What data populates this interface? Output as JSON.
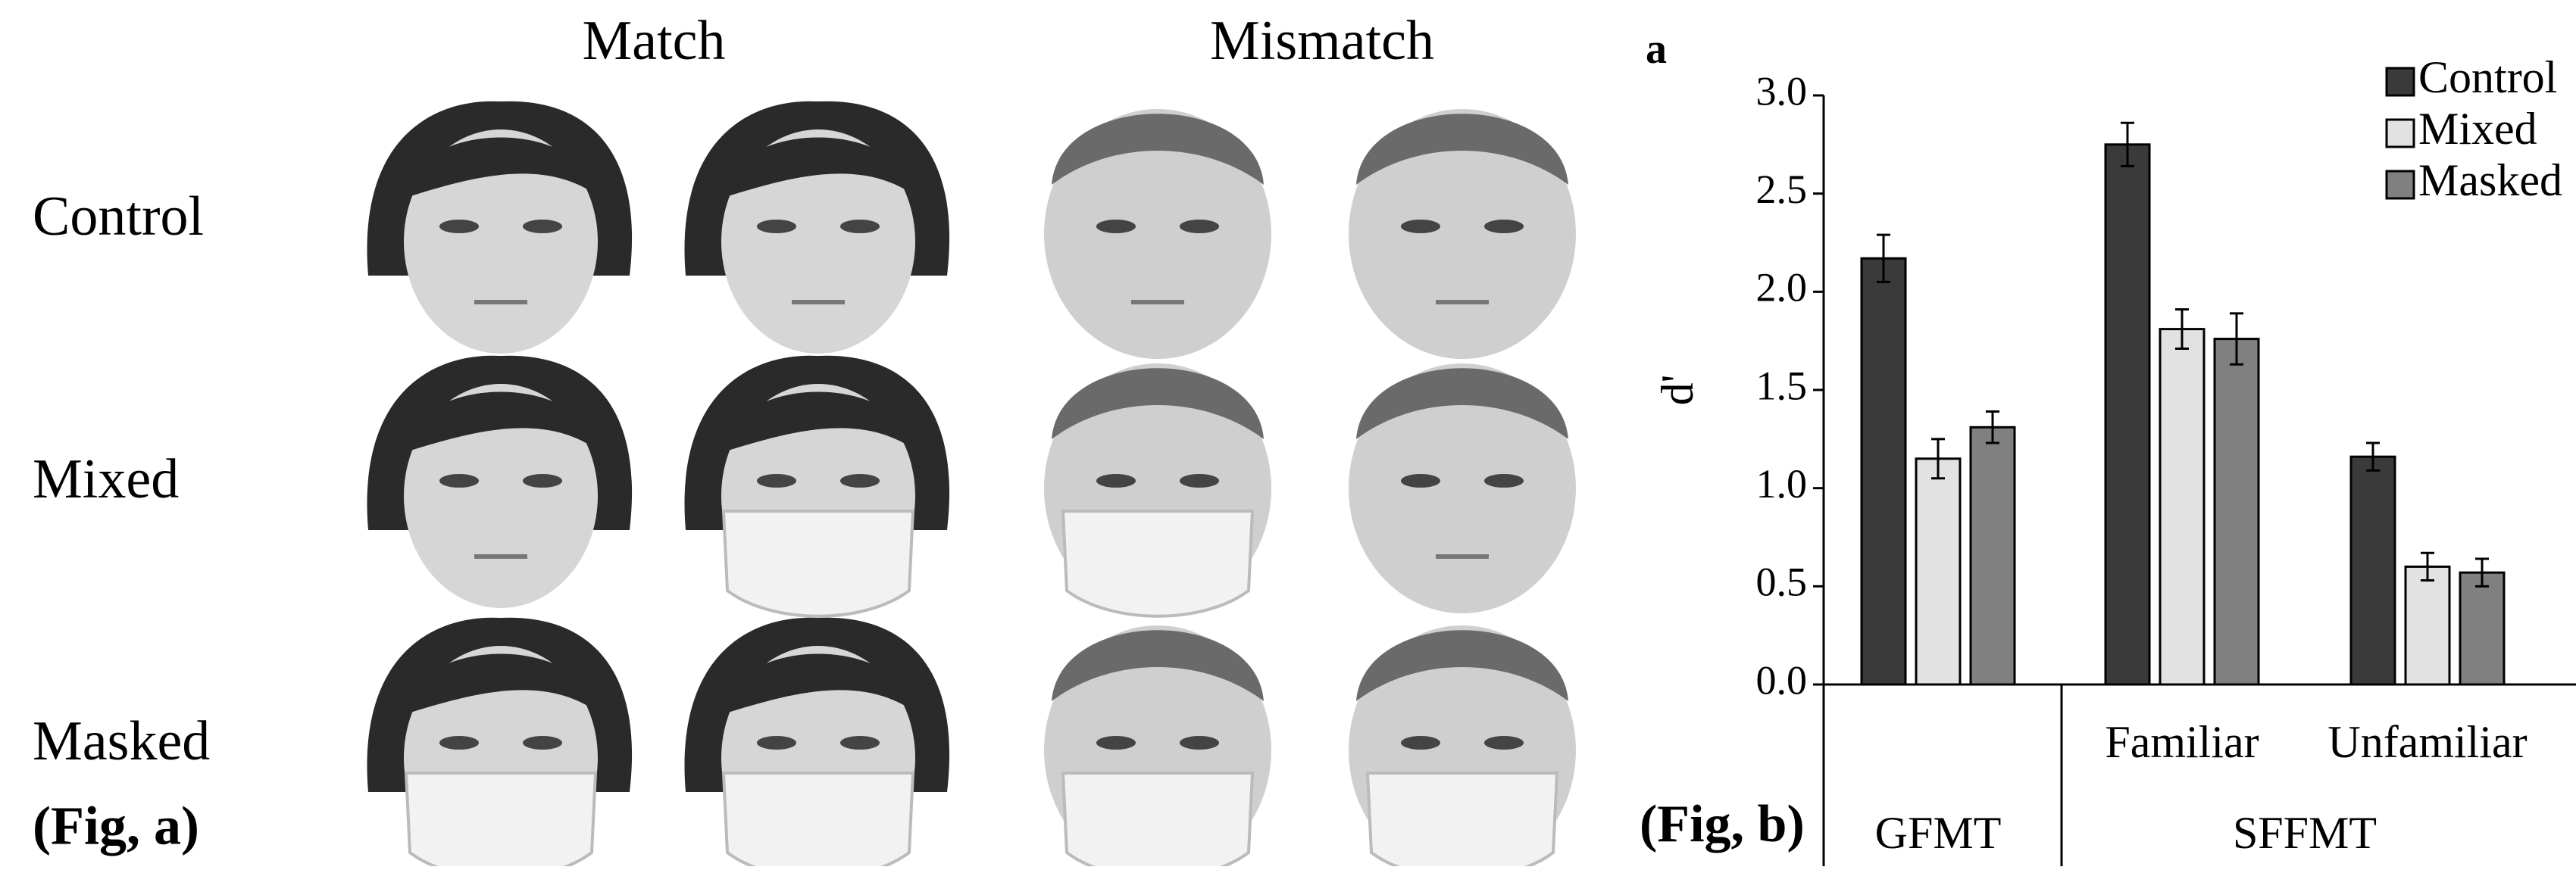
{
  "figure_a": {
    "column_headers": [
      "Match",
      "Mismatch"
    ],
    "row_labels": [
      "Control",
      "Mixed",
      "Masked"
    ],
    "caption": "(Fig, a)"
  },
  "chart_data": {
    "type": "bar",
    "panel_label": "a",
    "caption": "(Fig, b)",
    "y_label": "d'",
    "groups": [
      {
        "name": "GFMT",
        "categories": [
          null
        ]
      },
      {
        "name": "SFFMT",
        "categories": [
          "Familiar",
          "Unfamiliar"
        ]
      }
    ],
    "series": [
      {
        "name": "Control",
        "color": "#3a3a3a",
        "values": [
          2.17,
          2.75,
          1.16
        ],
        "errors": [
          0.12,
          0.11,
          0.07
        ]
      },
      {
        "name": "Mixed",
        "color": "#e2e2e2",
        "values": [
          1.15,
          1.81,
          0.6
        ],
        "errors": [
          0.1,
          0.1,
          0.07
        ]
      },
      {
        "name": "Masked",
        "color": "#808080",
        "values": [
          1.31,
          1.76,
          0.57
        ],
        "errors": [
          0.08,
          0.13,
          0.07
        ]
      }
    ],
    "ylim": [
      0,
      3
    ],
    "yticks": [
      {
        "value": 0,
        "label": "0.0"
      },
      0.5,
      {
        "value": 1,
        "label": "1.0"
      },
      1.5,
      {
        "value": 2,
        "label": "2.0"
      },
      2.5,
      {
        "value": 3,
        "label": "3.0"
      }
    ],
    "legend": "top-right"
  }
}
